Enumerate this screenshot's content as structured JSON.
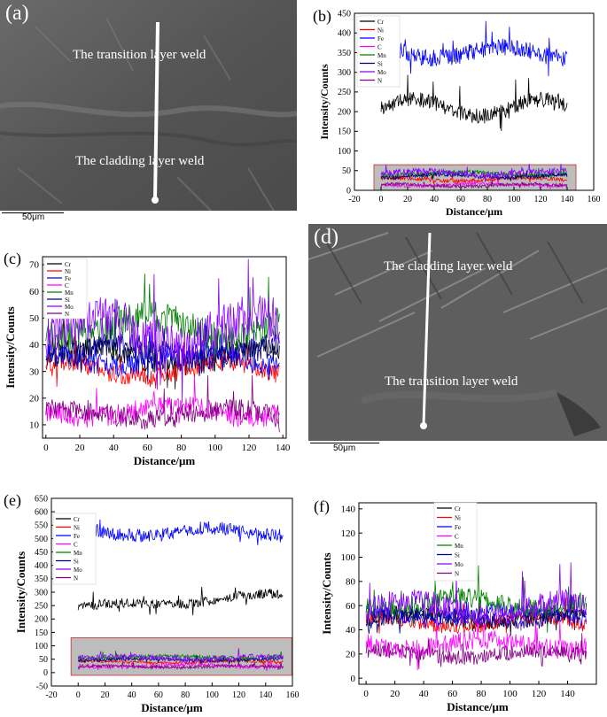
{
  "panels": {
    "a": {
      "label": "(a)",
      "text_top": "The transition layer weld",
      "text_bottom": "The cladding layer weld",
      "scale": "50μm"
    },
    "d": {
      "label": "(d)",
      "text_top": "The cladding layer weld",
      "text_bottom": "The transition layer weld",
      "scale": "50μm"
    }
  },
  "chart_data": [
    {
      "id": "b",
      "panel_label": "(b)",
      "type": "line",
      "xlabel": "Distance/μm",
      "ylabel": "Intensity/Counts",
      "xlim": [
        -20,
        160
      ],
      "ylim": [
        0,
        450
      ],
      "xticks": [
        -20,
        0,
        20,
        40,
        60,
        80,
        100,
        120,
        140,
        160
      ],
      "yticks": [
        0,
        50,
        100,
        150,
        200,
        250,
        300,
        350,
        400,
        450
      ],
      "x_range": [
        0,
        140
      ],
      "highlight_box": {
        "y": [
          0,
          65
        ],
        "color": "#c0504d",
        "fill": "#bdbdbd"
      },
      "legend": [
        "Cr",
        "Ni",
        "Fe",
        "C",
        "Mn",
        "Si",
        "Mo",
        "N"
      ],
      "series": [
        {
          "name": "Cr",
          "color": "#000000",
          "mean": 210,
          "amp": 22,
          "noise": 20
        },
        {
          "name": "Ni",
          "color": "#ff0000",
          "mean": 28,
          "amp": 4,
          "noise": 5
        },
        {
          "name": "Fe",
          "color": "#0000ff",
          "mean": 350,
          "amp": 15,
          "noise": 22
        },
        {
          "name": "C",
          "color": "#ff00ff",
          "mean": 14,
          "amp": 3,
          "noise": 4
        },
        {
          "name": "Mn",
          "color": "#008000",
          "mean": 42,
          "amp": 4,
          "noise": 6
        },
        {
          "name": "Si",
          "color": "#000080",
          "mean": 36,
          "amp": 4,
          "noise": 5
        },
        {
          "name": "Mo",
          "color": "#8b00ff",
          "mean": 44,
          "amp": 5,
          "noise": 8
        },
        {
          "name": "N",
          "color": "#800080",
          "mean": 13,
          "amp": 3,
          "noise": 4
        }
      ]
    },
    {
      "id": "c",
      "panel_label": "(c)",
      "type": "line",
      "xlabel": "Distance/μm",
      "ylabel": "Intensity/Counts",
      "xlim": [
        -2,
        142
      ],
      "ylim": [
        5,
        73
      ],
      "xticks": [
        0,
        20,
        40,
        60,
        80,
        100,
        120,
        140
      ],
      "yticks": [
        10,
        20,
        30,
        40,
        50,
        60,
        70
      ],
      "x_range": [
        0,
        138
      ],
      "legend": [
        "Cr",
        "Ni",
        "Fe",
        "C",
        "Mn",
        "Si",
        "Mo",
        "N"
      ],
      "series": [
        {
          "name": "Cr",
          "color": "#000000",
          "mean": 36,
          "amp": 3,
          "noise": 4
        },
        {
          "name": "Ni",
          "color": "#ff0000",
          "mean": 31,
          "amp": 3,
          "noise": 4
        },
        {
          "name": "Fe",
          "color": "#0000ff",
          "mean": 35,
          "amp": 3,
          "noise": 4
        },
        {
          "name": "C",
          "color": "#ff00ff",
          "mean": 15,
          "amp": 2,
          "noise": 4
        },
        {
          "name": "Mn",
          "color": "#008000",
          "mean": 47,
          "amp": 4,
          "noise": 6
        },
        {
          "name": "Si",
          "color": "#000080",
          "mean": 37,
          "amp": 3,
          "noise": 5
        },
        {
          "name": "Mo",
          "color": "#8b00ff",
          "mean": 45,
          "amp": 5,
          "noise": 9
        },
        {
          "name": "N",
          "color": "#800080",
          "mean": 14,
          "amp": 2,
          "noise": 4
        }
      ]
    },
    {
      "id": "e",
      "panel_label": "(e)",
      "type": "line",
      "xlabel": "Distance/μm",
      "ylabel": "Intensity/Counts",
      "xlim": [
        -20,
        160
      ],
      "ylim": [
        -50,
        650
      ],
      "xticks": [
        -20,
        0,
        20,
        40,
        60,
        80,
        100,
        120,
        140,
        160
      ],
      "yticks": [
        -50,
        0,
        50,
        100,
        150,
        200,
        250,
        300,
        350,
        400,
        450,
        500,
        550,
        600,
        650
      ],
      "x_range": [
        0,
        153
      ],
      "highlight_box": {
        "y": [
          -10,
          130
        ],
        "color": "#c0504d",
        "fill": "#bdbdbd"
      },
      "legend": [
        "Cr",
        "Ni",
        "Fe",
        "C",
        "Mn",
        "Si",
        "Mo",
        "N"
      ],
      "series": [
        {
          "name": "Cr",
          "color": "#000000",
          "mean": 240,
          "trend": 50,
          "amp": 10,
          "noise": 18
        },
        {
          "name": "Ni",
          "color": "#ff0000",
          "mean": 40,
          "amp": 4,
          "noise": 6
        },
        {
          "name": "Fe",
          "color": "#0000ff",
          "mean": 525,
          "amp": 15,
          "noise": 25
        },
        {
          "name": "C",
          "color": "#ff00ff",
          "mean": 25,
          "amp": 4,
          "noise": 8
        },
        {
          "name": "Mn",
          "color": "#008000",
          "mean": 58,
          "amp": 4,
          "noise": 8
        },
        {
          "name": "Si",
          "color": "#000080",
          "mean": 48,
          "amp": 4,
          "noise": 6
        },
        {
          "name": "Mo",
          "color": "#8b00ff",
          "mean": 55,
          "amp": 5,
          "noise": 10
        },
        {
          "name": "N",
          "color": "#800080",
          "mean": 22,
          "amp": 3,
          "noise": 6
        }
      ]
    },
    {
      "id": "f",
      "panel_label": "(f)",
      "type": "line",
      "xlabel": "Distance/μm",
      "ylabel": "Intensity/Counts",
      "xlim": [
        -5,
        160
      ],
      "ylim": [
        -5,
        145
      ],
      "xticks": [
        0,
        20,
        40,
        60,
        80,
        100,
        120,
        140
      ],
      "yticks": [
        0,
        20,
        40,
        60,
        80,
        100,
        120,
        140
      ],
      "x_range": [
        0,
        153
      ],
      "legend": [
        "Cr",
        "Ni",
        "Fe",
        "C",
        "Mn",
        "Si",
        "Mo",
        "N"
      ],
      "series": [
        {
          "name": "Cr",
          "color": "#000000",
          "mean": 50,
          "amp": 4,
          "noise": 6
        },
        {
          "name": "Ni",
          "color": "#ff0000",
          "mean": 46,
          "amp": 4,
          "noise": 6
        },
        {
          "name": "Fe",
          "color": "#0000ff",
          "mean": 52,
          "amp": 4,
          "noise": 6
        },
        {
          "name": "C",
          "color": "#ff00ff",
          "mean": 28,
          "amp": 4,
          "noise": 8
        },
        {
          "name": "Mn",
          "color": "#008000",
          "mean": 62,
          "amp": 5,
          "noise": 8
        },
        {
          "name": "Si",
          "color": "#000080",
          "mean": 50,
          "amp": 4,
          "noise": 6
        },
        {
          "name": "Mo",
          "color": "#8b00ff",
          "mean": 58,
          "amp": 6,
          "noise": 10
        },
        {
          "name": "N",
          "color": "#800080",
          "mean": 20,
          "amp": 3,
          "noise": 6
        }
      ]
    }
  ]
}
